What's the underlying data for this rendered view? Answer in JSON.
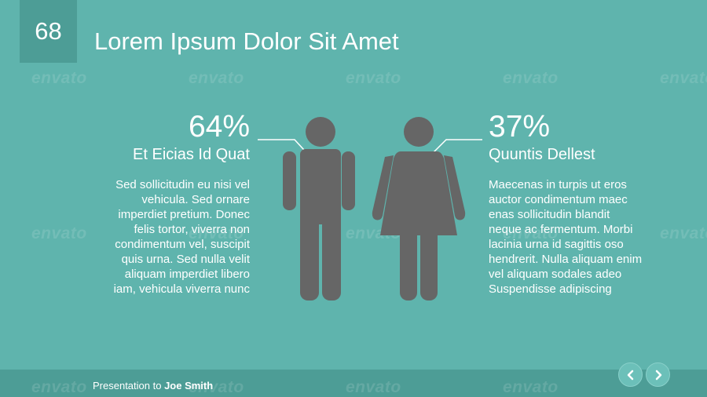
{
  "slide": {
    "number": "68",
    "title": "Lorem Ipsum Dolor Sit Amet"
  },
  "watermark_text": "envato",
  "male": {
    "percent": "64%",
    "label": "Et Eicias Id Quat",
    "body_lines": [
      "Sed sollicitudin eu nisi vel",
      "vehicula. Sed ornare",
      "imperdiet pretium. Donec",
      "felis tortor, viverra non",
      "condimentum vel, suscipit",
      "quis urna. Sed nulla velit",
      "aliquam imperdiet libero",
      "iam, vehicula viverra nunc"
    ]
  },
  "female": {
    "percent": "37%",
    "label": "Quuntis Dellest",
    "body_lines": [
      "Maecenas in turpis ut eros",
      "auctor condimentum maec",
      "enas sollicitudin blandit",
      "neque ac fermentum. Morbi",
      "lacinia urna id sagittis oso",
      "hendrerit. Nulla aliquam enim",
      "vel aliquam sodales adeo",
      "Suspendisse adipiscing"
    ]
  },
  "footer": {
    "prefix": "Presentation to ",
    "name": "Joe Smith"
  },
  "icons": {
    "male": "male-person-icon",
    "female": "female-person-icon",
    "prev": "chevron-left-icon",
    "next": "chevron-right-icon"
  },
  "colors": {
    "background": "#5fb4ad",
    "accent_dark": "#4d9d96",
    "figure": "#666666",
    "text": "#ffffff"
  }
}
